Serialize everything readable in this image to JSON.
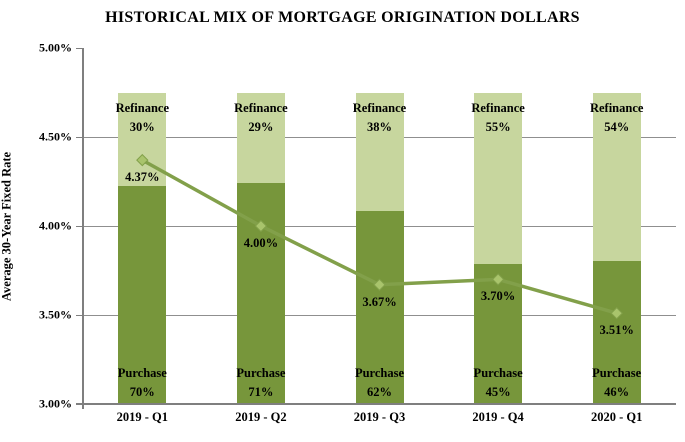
{
  "title": "HISTORICAL MIX OF MORTGAGE ORIGINATION DOLLARS",
  "chart_data": {
    "type": "combo",
    "subtypes": [
      "stacked-column",
      "line"
    ],
    "title": "HISTORICAL MIX OF MORTGAGE ORIGINATION DOLLARS",
    "categories": [
      "2019 - Q1",
      "2019 - Q2",
      "2019 - Q3",
      "2019 - Q4",
      "2020 - Q1"
    ],
    "series": [
      {
        "name": "Purchase",
        "type": "column",
        "stack_position": "bottom",
        "unit": "%",
        "values": [
          70,
          71,
          62,
          45,
          46
        ],
        "color": "#77963b"
      },
      {
        "name": "Refinance",
        "type": "column",
        "stack_position": "top",
        "unit": "%",
        "values": [
          30,
          29,
          38,
          55,
          54
        ],
        "color": "#c7d69e"
      },
      {
        "name": "Average 30-Year Fixed Rate",
        "type": "line",
        "unit": "%",
        "values": [
          4.37,
          4.0,
          3.67,
          3.7,
          3.51
        ],
        "point_labels": [
          "4.37%",
          "4.00%",
          "3.67%",
          "3.70%",
          "3.51%"
        ],
        "line_color": "#82a04a",
        "marker": "diamond",
        "marker_fill": "#a9c46c"
      }
    ],
    "ylabel": "Average 30-Year Fixed Rate",
    "xlabel": "",
    "y_axis": {
      "min": 3.0,
      "max": 5.0,
      "tick_step": 0.5,
      "tick_labels": [
        "5.00%",
        "4.50%",
        "4.00%",
        "3.50%",
        "3.00%"
      ]
    },
    "bar_label_lines": [
      "name",
      "value"
    ],
    "grid": "horizontal-major-only",
    "legend": "none",
    "colors": {
      "grid": "#8f8f8f",
      "axis": "#7f7f7f",
      "text": "#000000",
      "background": "#ffffff"
    }
  }
}
